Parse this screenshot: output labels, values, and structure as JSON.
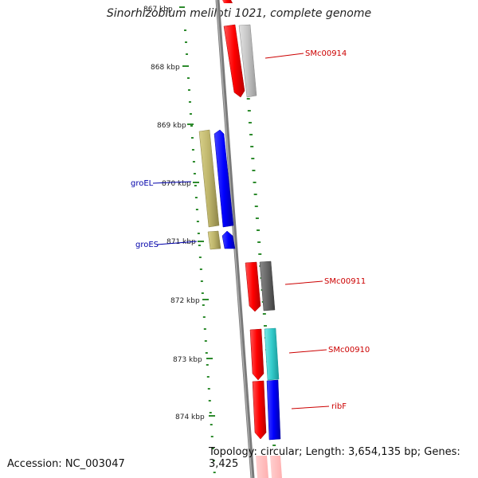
{
  "title": "Sinorhizobium meliloti 1021, complete genome",
  "footer": {
    "accession": "Accession: NC_003047",
    "stats": "Topology: circular; Length: 3,654,135 bp; Genes: 3,425"
  },
  "ticks": [
    "867 kbp",
    "868 kbp",
    "869 kbp",
    "870 kbp",
    "871 kbp",
    "872 kbp",
    "873 kbp",
    "874 kbp"
  ],
  "genes": [
    {
      "name": "SMc00914",
      "strand": "reverse",
      "side": "right",
      "color": "#cc0000"
    },
    {
      "name": "groEL",
      "strand": "forward",
      "side": "left",
      "color": "#0000aa"
    },
    {
      "name": "groES",
      "strand": "forward",
      "side": "left",
      "color": "#0000aa"
    },
    {
      "name": "SMc00911",
      "strand": "reverse",
      "side": "right",
      "color": "#cc0000"
    },
    {
      "name": "SMc00910",
      "strand": "reverse",
      "side": "right",
      "color": "#cc0000"
    },
    {
      "name": "ribF",
      "strand": "reverse",
      "side": "right",
      "color": "#cc0000"
    }
  ],
  "colors": {
    "backbone": "#7a7a7a",
    "forward": "#ff0000",
    "reverse_cds": "#0000ff",
    "gc_skew_dots": "#2e8b2e",
    "olive": "#bdb46a",
    "gray_light": "#c4c4c4",
    "gray_dark": "#666666",
    "cyan": "#33cccc"
  }
}
